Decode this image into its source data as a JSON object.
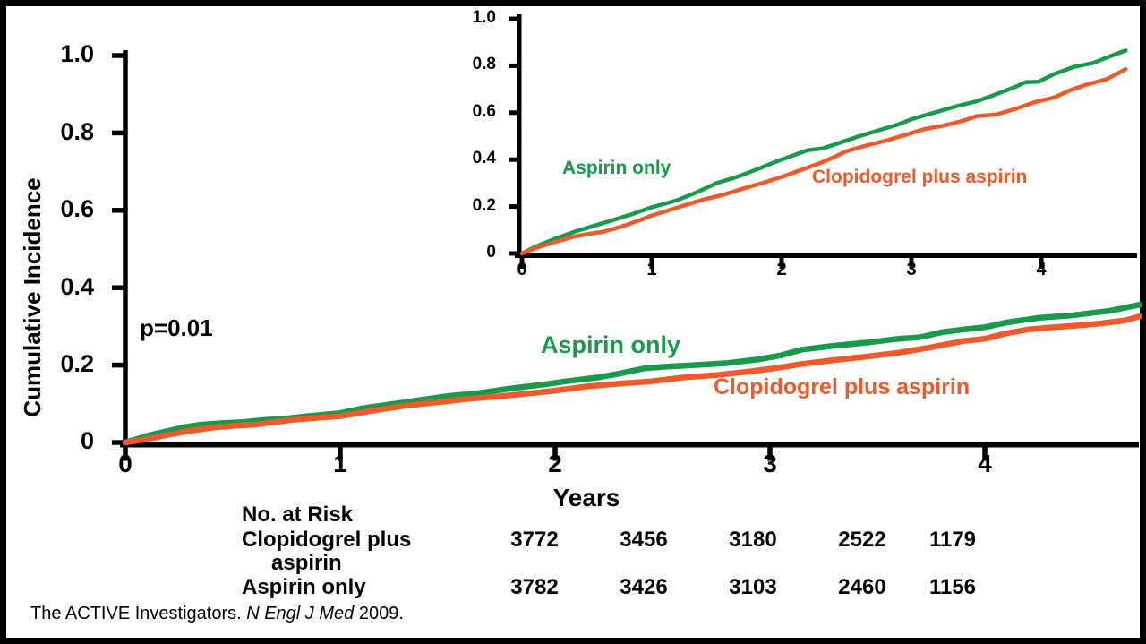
{
  "colors": {
    "aspirin_green": "#18994c",
    "clopidogrel_orange": "#ee5a29",
    "axis_black": "#000000",
    "background": "#ffffff"
  },
  "main_chart": {
    "ylabel": "Cumulative Incidence",
    "xlabel": "Years",
    "p_value": "p=0.01",
    "aspirin_label": "Aspirin only",
    "clopidogrel_label": "Clopidogrel plus aspirin"
  },
  "inset_chart": {
    "aspirin_label": "Aspirin only",
    "clopidogrel_label": "Clopidogrel plus aspirin"
  },
  "chart_data": [
    {
      "id": "main",
      "type": "line",
      "title": "",
      "xlabel": "Years",
      "ylabel": "Cumulative Incidence",
      "annotation": "p=0.01",
      "xlim": [
        0,
        4.72
      ],
      "ylim": [
        0,
        1.0
      ],
      "grid": false,
      "legend_position": "in-plot text labels",
      "x_ticks": [
        {
          "v": 0,
          "label": "0"
        },
        {
          "v": 1,
          "label": "1"
        },
        {
          "v": 2,
          "label": "2"
        },
        {
          "v": 3,
          "label": "3"
        },
        {
          "v": 4,
          "label": "4"
        }
      ],
      "y_ticks": [
        {
          "v": 0,
          "label": "0"
        },
        {
          "v": 0.2,
          "label": "0.2"
        },
        {
          "v": 0.4,
          "label": "0.4"
        },
        {
          "v": 0.6,
          "label": "0.6"
        },
        {
          "v": 0.8,
          "label": "0.8"
        },
        {
          "v": 1.0,
          "label": "1.0"
        }
      ],
      "series": [
        {
          "name": "Aspirin only",
          "color": "#18994c",
          "x": [
            0,
            0.06,
            0.12,
            0.2,
            0.28,
            0.35,
            0.45,
            0.55,
            0.65,
            0.75,
            0.85,
            1.0,
            1.1,
            1.25,
            1.35,
            1.5,
            1.65,
            1.8,
            1.95,
            2.05,
            2.2,
            2.3,
            2.42,
            2.52,
            2.65,
            2.8,
            2.95,
            3.05,
            3.15,
            3.3,
            3.45,
            3.6,
            3.7,
            3.8,
            3.9,
            4.0,
            4.1,
            4.25,
            4.4,
            4.5,
            4.58,
            4.65,
            4.72
          ],
          "y": [
            0,
            0.01,
            0.02,
            0.03,
            0.04,
            0.046,
            0.05,
            0.053,
            0.058,
            0.062,
            0.068,
            0.076,
            0.088,
            0.1,
            0.108,
            0.12,
            0.128,
            0.14,
            0.15,
            0.158,
            0.168,
            0.178,
            0.192,
            0.196,
            0.2,
            0.205,
            0.215,
            0.225,
            0.24,
            0.25,
            0.258,
            0.268,
            0.272,
            0.285,
            0.292,
            0.298,
            0.31,
            0.322,
            0.328,
            0.335,
            0.34,
            0.348,
            0.356
          ]
        },
        {
          "name": "Clopidogrel plus aspirin",
          "color": "#ee5a29",
          "x": [
            0,
            0.06,
            0.14,
            0.22,
            0.3,
            0.4,
            0.5,
            0.6,
            0.7,
            0.8,
            0.9,
            1.0,
            1.15,
            1.3,
            1.45,
            1.6,
            1.75,
            1.9,
            2.0,
            2.15,
            2.3,
            2.45,
            2.6,
            2.75,
            2.9,
            3.0,
            3.15,
            3.3,
            3.45,
            3.6,
            3.75,
            3.9,
            4.0,
            4.1,
            4.2,
            4.3,
            4.45,
            4.55,
            4.65,
            4.72
          ],
          "y": [
            0,
            0.005,
            0.013,
            0.022,
            0.03,
            0.038,
            0.043,
            0.046,
            0.053,
            0.06,
            0.064,
            0.068,
            0.082,
            0.095,
            0.104,
            0.113,
            0.12,
            0.128,
            0.134,
            0.145,
            0.152,
            0.158,
            0.168,
            0.174,
            0.183,
            0.19,
            0.203,
            0.213,
            0.222,
            0.232,
            0.246,
            0.262,
            0.268,
            0.282,
            0.292,
            0.297,
            0.303,
            0.308,
            0.315,
            0.326
          ]
        }
      ]
    },
    {
      "id": "inset",
      "type": "line",
      "title": "",
      "xlabel": "",
      "ylabel": "",
      "xlim": [
        0,
        4.65
      ],
      "ylim": [
        0,
        1.0
      ],
      "grid": false,
      "legend_position": "in-plot text labels",
      "x_ticks": [
        {
          "v": 0,
          "label": "0"
        },
        {
          "v": 1,
          "label": "1"
        },
        {
          "v": 2,
          "label": "2"
        },
        {
          "v": 3,
          "label": "3"
        },
        {
          "v": 4,
          "label": "4"
        }
      ],
      "y_ticks": [
        {
          "v": 0,
          "label": "0"
        },
        {
          "v": 0.2,
          "label": "0.2"
        },
        {
          "v": 0.4,
          "label": "0.4"
        },
        {
          "v": 0.6,
          "label": "0.6"
        },
        {
          "v": 0.8,
          "label": "0.8"
        },
        {
          "v": 1.0,
          "label": "1.0"
        }
      ],
      "series": [
        {
          "name": "Aspirin only",
          "color": "#18994c",
          "x": [
            0,
            0.1,
            0.25,
            0.4,
            0.55,
            0.7,
            0.85,
            1.0,
            1.1,
            1.2,
            1.35,
            1.5,
            1.65,
            1.8,
            1.95,
            2.1,
            2.2,
            2.32,
            2.45,
            2.6,
            2.75,
            2.9,
            3.0,
            3.1,
            3.25,
            3.35,
            3.5,
            3.65,
            3.8,
            3.88,
            3.98,
            4.1,
            4.25,
            4.4,
            4.52,
            4.65
          ],
          "y": [
            0,
            0.028,
            0.062,
            0.092,
            0.117,
            0.142,
            0.168,
            0.197,
            0.212,
            0.228,
            0.262,
            0.3,
            0.325,
            0.356,
            0.39,
            0.42,
            0.44,
            0.448,
            0.472,
            0.5,
            0.525,
            0.55,
            0.572,
            0.588,
            0.612,
            0.628,
            0.648,
            0.678,
            0.71,
            0.73,
            0.732,
            0.765,
            0.795,
            0.812,
            0.838,
            0.865
          ]
        },
        {
          "name": "Clopidogrel plus aspirin",
          "color": "#ee5a29",
          "x": [
            0,
            0.1,
            0.25,
            0.4,
            0.5,
            0.62,
            0.75,
            0.9,
            1.0,
            1.12,
            1.25,
            1.4,
            1.55,
            1.7,
            1.85,
            2.0,
            2.15,
            2.3,
            2.4,
            2.5,
            2.65,
            2.8,
            2.95,
            3.1,
            3.25,
            3.4,
            3.5,
            3.65,
            3.8,
            3.95,
            4.1,
            4.22,
            4.35,
            4.5,
            4.58,
            4.65
          ],
          "y": [
            0,
            0.022,
            0.048,
            0.072,
            0.082,
            0.092,
            0.112,
            0.14,
            0.162,
            0.182,
            0.205,
            0.23,
            0.25,
            0.276,
            0.3,
            0.326,
            0.356,
            0.386,
            0.41,
            0.436,
            0.46,
            0.48,
            0.505,
            0.53,
            0.545,
            0.566,
            0.585,
            0.592,
            0.616,
            0.645,
            0.665,
            0.695,
            0.72,
            0.742,
            0.765,
            0.785
          ]
        }
      ]
    }
  ],
  "risk_table": {
    "heading": "No. at Risk",
    "rows": [
      {
        "label_line1": "Clopidogrel plus",
        "label_line2": "aspirin",
        "values": [
          "3772",
          "3456",
          "3180",
          "2522",
          "1179"
        ]
      },
      {
        "label_line1": "Aspirin only",
        "label_line2": "",
        "values": [
          "3782",
          "3426",
          "3103",
          "2460",
          "1156"
        ]
      }
    ]
  },
  "footer": {
    "citation_regular": "The ACTIVE Investigators. ",
    "citation_italic": "N Engl J Med",
    "citation_end": " 2009."
  }
}
